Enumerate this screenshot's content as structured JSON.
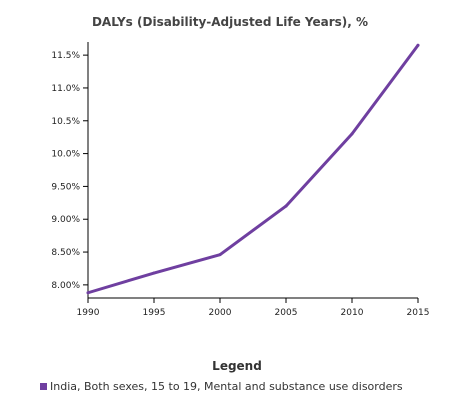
{
  "chart_data": {
    "type": "line",
    "title": "DALYs (Disability-Adjusted Life Years), %",
    "xlabel": "",
    "ylabel": "",
    "x": [
      1990,
      1995,
      2000,
      2005,
      2010,
      2015
    ],
    "xlim": [
      1990,
      2015
    ],
    "ylim": [
      7.8,
      11.7
    ],
    "x_ticks": [
      {
        "value": 1990,
        "label": "1990"
      },
      {
        "value": 1995,
        "label": "1995"
      },
      {
        "value": 2000,
        "label": "2000"
      },
      {
        "value": 2005,
        "label": "2005"
      },
      {
        "value": 2010,
        "label": "2010"
      },
      {
        "value": 2015,
        "label": "2015"
      }
    ],
    "y_ticks": [
      {
        "value": 8.0,
        "label": "8.00%"
      },
      {
        "value": 8.5,
        "label": "8.50%"
      },
      {
        "value": 9.0,
        "label": "9.00%"
      },
      {
        "value": 9.5,
        "label": "9.50%"
      },
      {
        "value": 10.0,
        "label": "10.0%"
      },
      {
        "value": 10.5,
        "label": "10.5%"
      },
      {
        "value": 11.0,
        "label": "11.0%"
      },
      {
        "value": 11.5,
        "label": "11.5%"
      }
    ],
    "grid": false,
    "legend_title": "Legend",
    "legend_position": "bottom",
    "series": [
      {
        "name": "India, Both sexes, 15 to 19, Mental and substance use disorders",
        "color": "#6f3fa0",
        "values": [
          7.88,
          8.18,
          8.46,
          9.2,
          10.3,
          11.65
        ]
      }
    ]
  }
}
